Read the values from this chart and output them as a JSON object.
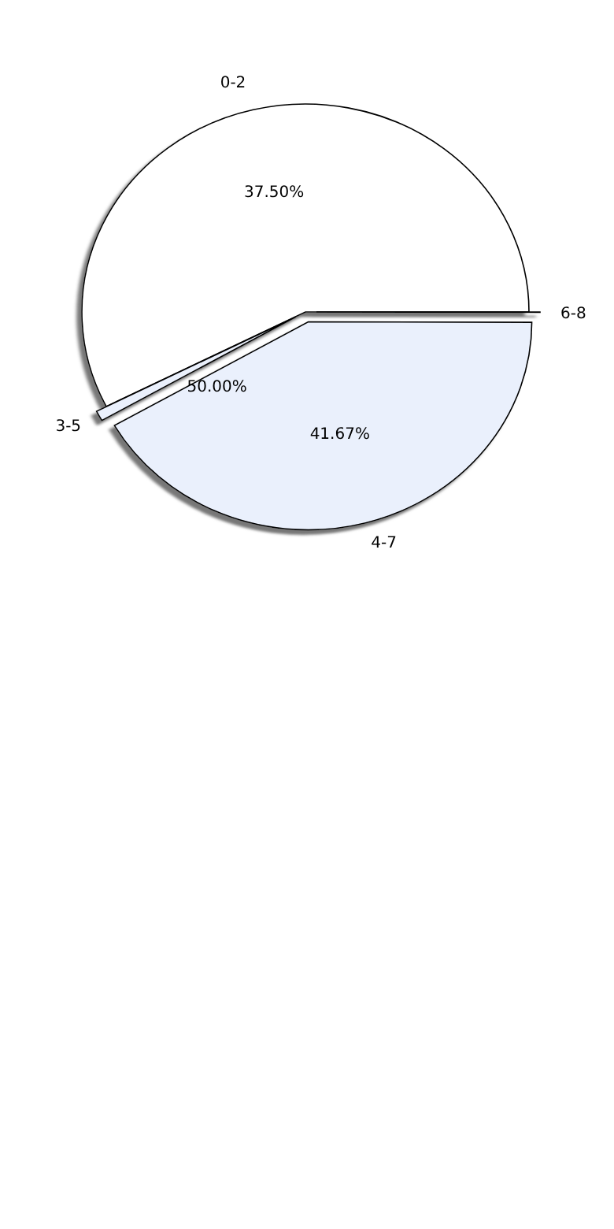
{
  "chart_data": {
    "type": "pie",
    "categories": [
      "0-2",
      "3-5",
      "4-7",
      "6-8"
    ],
    "values": [
      57.5,
      0.8,
      41.67,
      0.03
    ],
    "colors": [
      "#ffffff",
      "#eaf0fc",
      "#eaf0fc",
      "#dce6f8"
    ],
    "annotations": [
      "37.50%",
      "50.00%",
      "41.67%"
    ]
  }
}
